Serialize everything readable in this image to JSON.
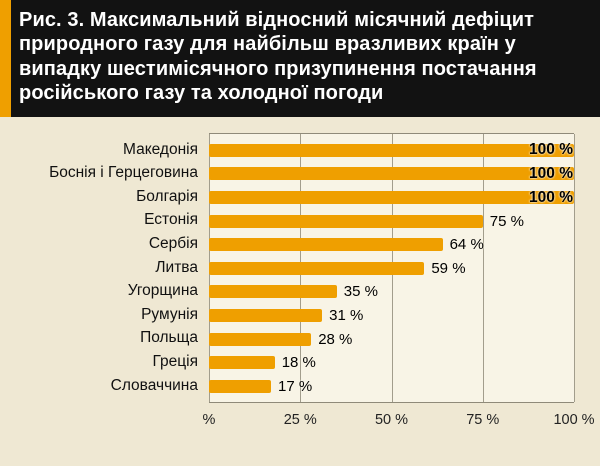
{
  "title": "Рис. 3. Максимальний відносний місячний дефіцит природного газу для найбільш вразливих країн у випадку шестимісячного призупинення постачання російського газу та холодної погоди",
  "colors": {
    "bar": "#EF9F00",
    "accent_stripe": "#EF9F00",
    "title_bg": "#121212",
    "title_text": "#FFFFFF",
    "page_bg": "#EFE8D3",
    "plot_bg": "#F8F4E6",
    "gridline": "#A29D8C"
  },
  "chart_data": {
    "type": "bar",
    "orientation": "horizontal",
    "title": "Рис. 3. Максимальний відносний місячний дефіцит природного газу для найбільш вразливих країн у випадку шестимісячного призупинення постачання російського газу та холодної погоди",
    "categories": [
      "Македонія",
      "Боснія і Герцеговина",
      "Болгарія",
      "Естонія",
      "Сербія",
      "Литва",
      "Угорщина",
      "Румунія",
      "Польща",
      "Греція",
      "Словаччина"
    ],
    "values": [
      100,
      100,
      100,
      75,
      64,
      59,
      35,
      31,
      28,
      18,
      17
    ],
    "value_labels": [
      "100 %",
      "100 %",
      "100 %",
      "75 %",
      "64 %",
      "59 %",
      "35 %",
      "31 %",
      "28 %",
      "18 %",
      "17 %"
    ],
    "x_ticks": [
      0,
      25,
      50,
      75,
      100
    ],
    "x_tick_labels": [
      "%",
      "25 %",
      "50 %",
      "75 %",
      "100 %"
    ],
    "xlim": [
      0,
      100
    ],
    "xlabel": "",
    "ylabel": "",
    "grid": true,
    "legend": "none"
  }
}
